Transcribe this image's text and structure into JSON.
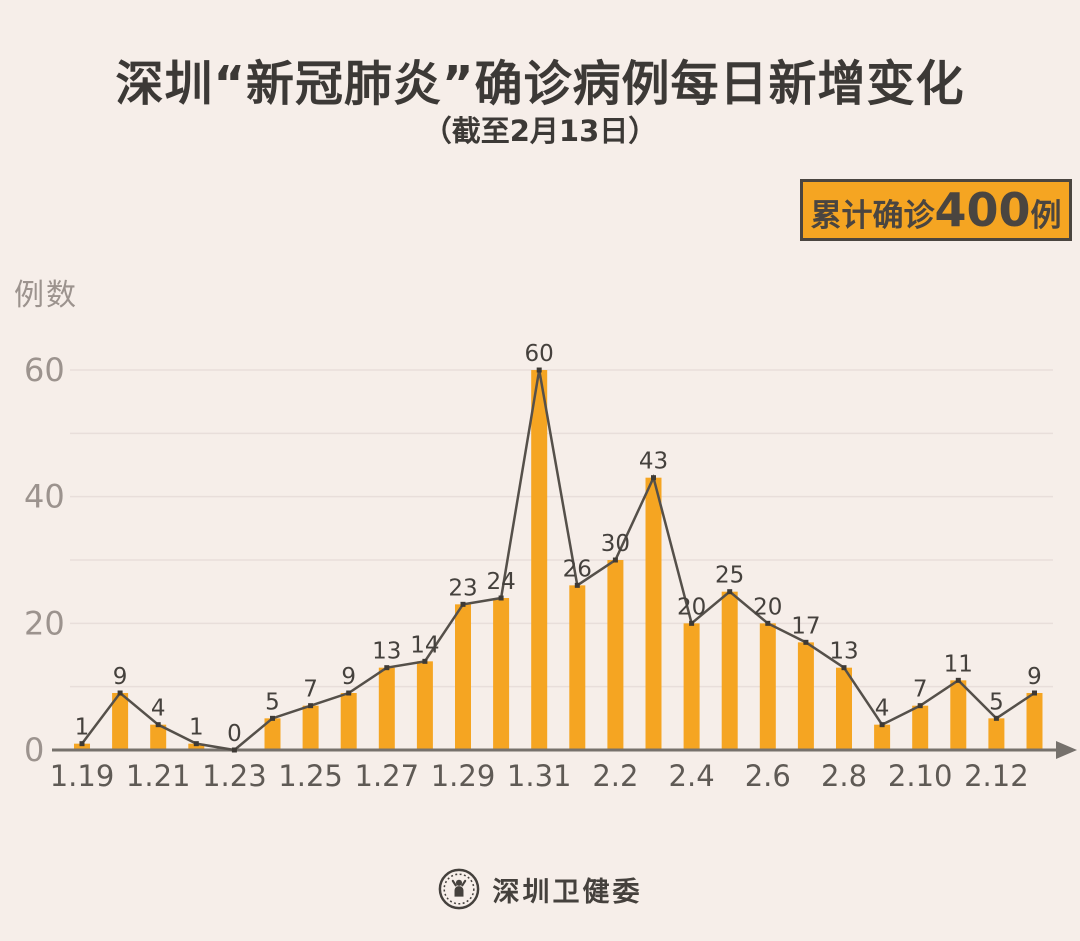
{
  "header": {
    "title": "深圳“新冠肺炎”确诊病例每日新增变化",
    "subtitle": "（截至2月13日）"
  },
  "badge": {
    "prefix": "累计确诊",
    "number": "400",
    "suffix": "例"
  },
  "theme": {
    "bg": "#F6EEE9",
    "accent": "#F5A522",
    "bar": "#F5A522",
    "line": "#55504A",
    "marker": "#3E3A35",
    "grid": "#E8DEDA",
    "axis": "#76716C",
    "dark": "#3C3936",
    "dark2": "#4A4540",
    "ytick": "#9C938E",
    "xtick": "#5F5A55",
    "value": "#45413D"
  },
  "chart_data": {
    "type": "bar",
    "overlay": "line-with-markers",
    "title": "深圳“新冠肺炎”确诊病例每日新增变化（截至2月13日）",
    "ylabel": "例数",
    "xlabel": "",
    "categories": [
      "1.19",
      "1.20",
      "1.21",
      "1.22",
      "1.23",
      "1.24",
      "1.25",
      "1.26",
      "1.27",
      "1.28",
      "1.29",
      "1.30",
      "1.31",
      "2.1",
      "2.2",
      "2.3",
      "2.4",
      "2.5",
      "2.6",
      "2.7",
      "2.8",
      "2.9",
      "2.10",
      "2.11",
      "2.12",
      "2.13"
    ],
    "values": [
      1,
      9,
      4,
      1,
      0,
      5,
      7,
      9,
      13,
      14,
      23,
      24,
      60,
      26,
      30,
      43,
      20,
      25,
      20,
      17,
      13,
      4,
      7,
      11,
      5,
      9
    ],
    "total": 400,
    "ylim": [
      0,
      60
    ],
    "yticks": [
      0,
      20,
      40,
      60
    ],
    "grid_step": 10,
    "grid": "on",
    "legend": "none",
    "xtick_shown_every": 2,
    "x_axis_arrow": "right"
  },
  "footer": {
    "org": "深圳卫健委",
    "logo": "shenzhen-health-commission-seal"
  }
}
